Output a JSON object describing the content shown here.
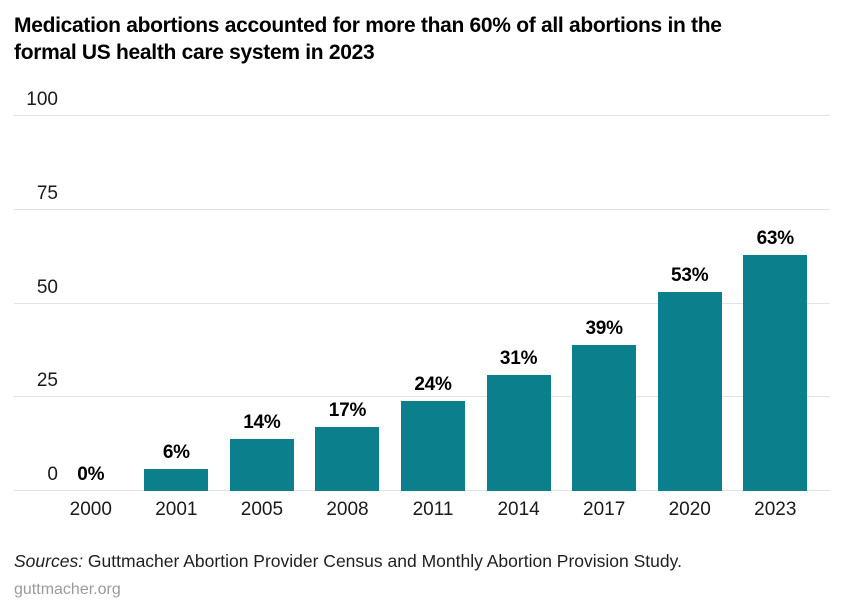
{
  "title": "Medication abortions accounted for more than 60% of all abortions in the formal US health care system in 2023",
  "sources": {
    "prefix": "Sources:",
    "text": " Guttmacher Abortion Provider Census and Monthly Abortion Provision Study."
  },
  "footer": {
    "link": "guttmacher.org"
  },
  "colors": {
    "bar": "#0c7f8d",
    "gridline": "#e3e3e3",
    "footer_link": "#9b9b9b",
    "title": "#000000",
    "tick": "#1a1a1a"
  },
  "chart_data": {
    "type": "bar",
    "title": "Medication abortions accounted for more than 60% of all abortions in the formal US health care system in 2023",
    "categories": [
      "2000",
      "2001",
      "2005",
      "2008",
      "2011",
      "2014",
      "2017",
      "2020",
      "2023"
    ],
    "values": [
      0,
      6,
      14,
      17,
      24,
      31,
      39,
      53,
      63
    ],
    "bar_labels": [
      "0%",
      "6%",
      "14%",
      "17%",
      "24%",
      "31%",
      "39%",
      "53%",
      "63%"
    ],
    "xlabel": "",
    "ylabel": "",
    "ylim": [
      0,
      100
    ],
    "yticks": [
      0,
      25,
      50,
      75,
      100
    ],
    "grid": true,
    "legend": false,
    "bar_color": "#0c7f8d"
  }
}
